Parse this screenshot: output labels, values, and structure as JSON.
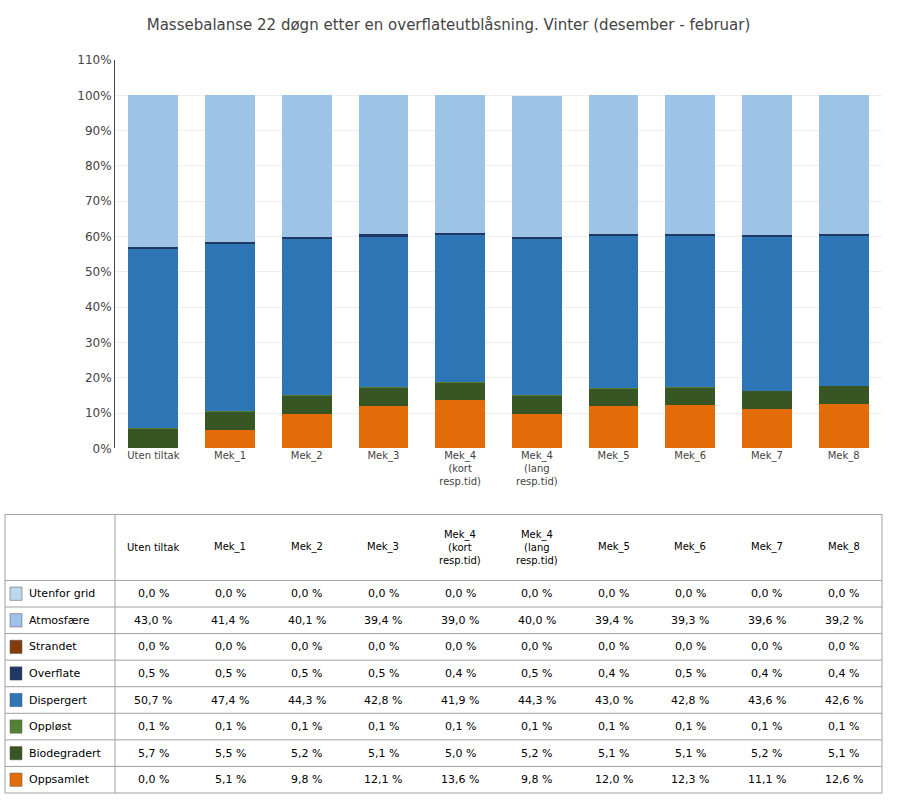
{
  "chart_data": {
    "type": "bar",
    "stacked": true,
    "grid": true,
    "title": "Massebalanse 22 døgn etter en overflateutblåsning. Vinter (desember - februar)",
    "categories": [
      "Uten tiltak",
      "Mek_1",
      "Mek_2",
      "Mek_3",
      "Mek_4\n(kort\nresp.tid)",
      "Mek_4\n(lang\nresp.tid)",
      "Mek_5",
      "Mek_6",
      "Mek_7",
      "Mek_8"
    ],
    "series": [
      {
        "name": "Oppsamlet",
        "color": "#e36c09",
        "values": [
          0.0,
          5.1,
          9.8,
          12.1,
          13.6,
          9.8,
          12.0,
          12.3,
          11.1,
          12.6
        ],
        "value_labels": [
          "0,0 %",
          "5,1 %",
          "9,8 %",
          "12,1 %",
          "13,6 %",
          "9,8 %",
          "12,0 %",
          "12,3 %",
          "11,1 %",
          "12,6 %"
        ]
      },
      {
        "name": "Biodegradert",
        "color": "#375623",
        "values": [
          5.7,
          5.5,
          5.2,
          5.1,
          5.0,
          5.2,
          5.1,
          5.1,
          5.2,
          5.1
        ],
        "value_labels": [
          "5,7 %",
          "5,5 %",
          "5,2 %",
          "5,1 %",
          "5,0 %",
          "5,2 %",
          "5,1 %",
          "5,1 %",
          "5,2 %",
          "5,1 %"
        ]
      },
      {
        "name": "Oppløst",
        "color": "#548235",
        "values": [
          0.1,
          0.1,
          0.1,
          0.1,
          0.1,
          0.1,
          0.1,
          0.1,
          0.1,
          0.1
        ],
        "value_labels": [
          "0,1 %",
          "0,1 %",
          "0,1 %",
          "0,1 %",
          "0,1 %",
          "0,1 %",
          "0,1 %",
          "0,1 %",
          "0,1 %",
          "0,1 %"
        ]
      },
      {
        "name": "Dispergert",
        "color": "#2e75b6",
        "values": [
          50.7,
          47.4,
          44.3,
          42.8,
          41.9,
          44.3,
          43.0,
          42.8,
          43.6,
          42.6
        ],
        "value_labels": [
          "50,7 %",
          "47,4 %",
          "44,3 %",
          "42,8 %",
          "41,9 %",
          "44,3 %",
          "43,0 %",
          "42,8 %",
          "43,6 %",
          "42,6 %"
        ]
      },
      {
        "name": "Overflate",
        "color": "#1f3864",
        "values": [
          0.5,
          0.5,
          0.5,
          0.5,
          0.4,
          0.5,
          0.4,
          0.5,
          0.4,
          0.4
        ],
        "value_labels": [
          "0,5 %",
          "0,5 %",
          "0,5 %",
          "0,5 %",
          "0,4 %",
          "0,5 %",
          "0,4 %",
          "0,5 %",
          "0,4 %",
          "0,4 %"
        ]
      },
      {
        "name": "Strandet",
        "color": "#843c0c",
        "values": [
          0.0,
          0.0,
          0.0,
          0.0,
          0.0,
          0.0,
          0.0,
          0.0,
          0.0,
          0.0
        ],
        "value_labels": [
          "0,0 %",
          "0,0 %",
          "0,0 %",
          "0,0 %",
          "0,0 %",
          "0,0 %",
          "0,0 %",
          "0,0 %",
          "0,0 %",
          "0,0 %"
        ]
      },
      {
        "name": "Atmosfære",
        "color": "#9dc3e6",
        "values": [
          43.0,
          41.4,
          40.1,
          39.4,
          39.0,
          40.0,
          39.4,
          39.3,
          39.6,
          39.2
        ],
        "value_labels": [
          "43,0 %",
          "41,4 %",
          "40,1 %",
          "39,4 %",
          "39,0 %",
          "40,0 %",
          "39,4 %",
          "39,3 %",
          "39,6 %",
          "39,2 %"
        ]
      },
      {
        "name": "Utenfor grid",
        "color": "#bdd7ee",
        "values": [
          0.0,
          0.0,
          0.0,
          0.0,
          0.0,
          0.0,
          0.0,
          0.0,
          0.0,
          0.0
        ],
        "value_labels": [
          "0,0 %",
          "0,0 %",
          "0,0 %",
          "0,0 %",
          "0,0 %",
          "0,0 %",
          "0,0 %",
          "0,0 %",
          "0,0 %",
          "0,0 %"
        ]
      }
    ],
    "ylim": [
      0,
      110
    ],
    "yticks": [
      {
        "value": 0,
        "label": "0%"
      },
      {
        "value": 10,
        "label": "10%"
      },
      {
        "value": 20,
        "label": "20%"
      },
      {
        "value": 30,
        "label": "30%"
      },
      {
        "value": 40,
        "label": "40%"
      },
      {
        "value": 50,
        "label": "50%"
      },
      {
        "value": 60,
        "label": "60%"
      },
      {
        "value": 70,
        "label": "70%"
      },
      {
        "value": 80,
        "label": "80%"
      },
      {
        "value": 90,
        "label": "90%"
      },
      {
        "value": 100,
        "label": "100%"
      },
      {
        "value": 110,
        "label": "110%"
      }
    ]
  }
}
